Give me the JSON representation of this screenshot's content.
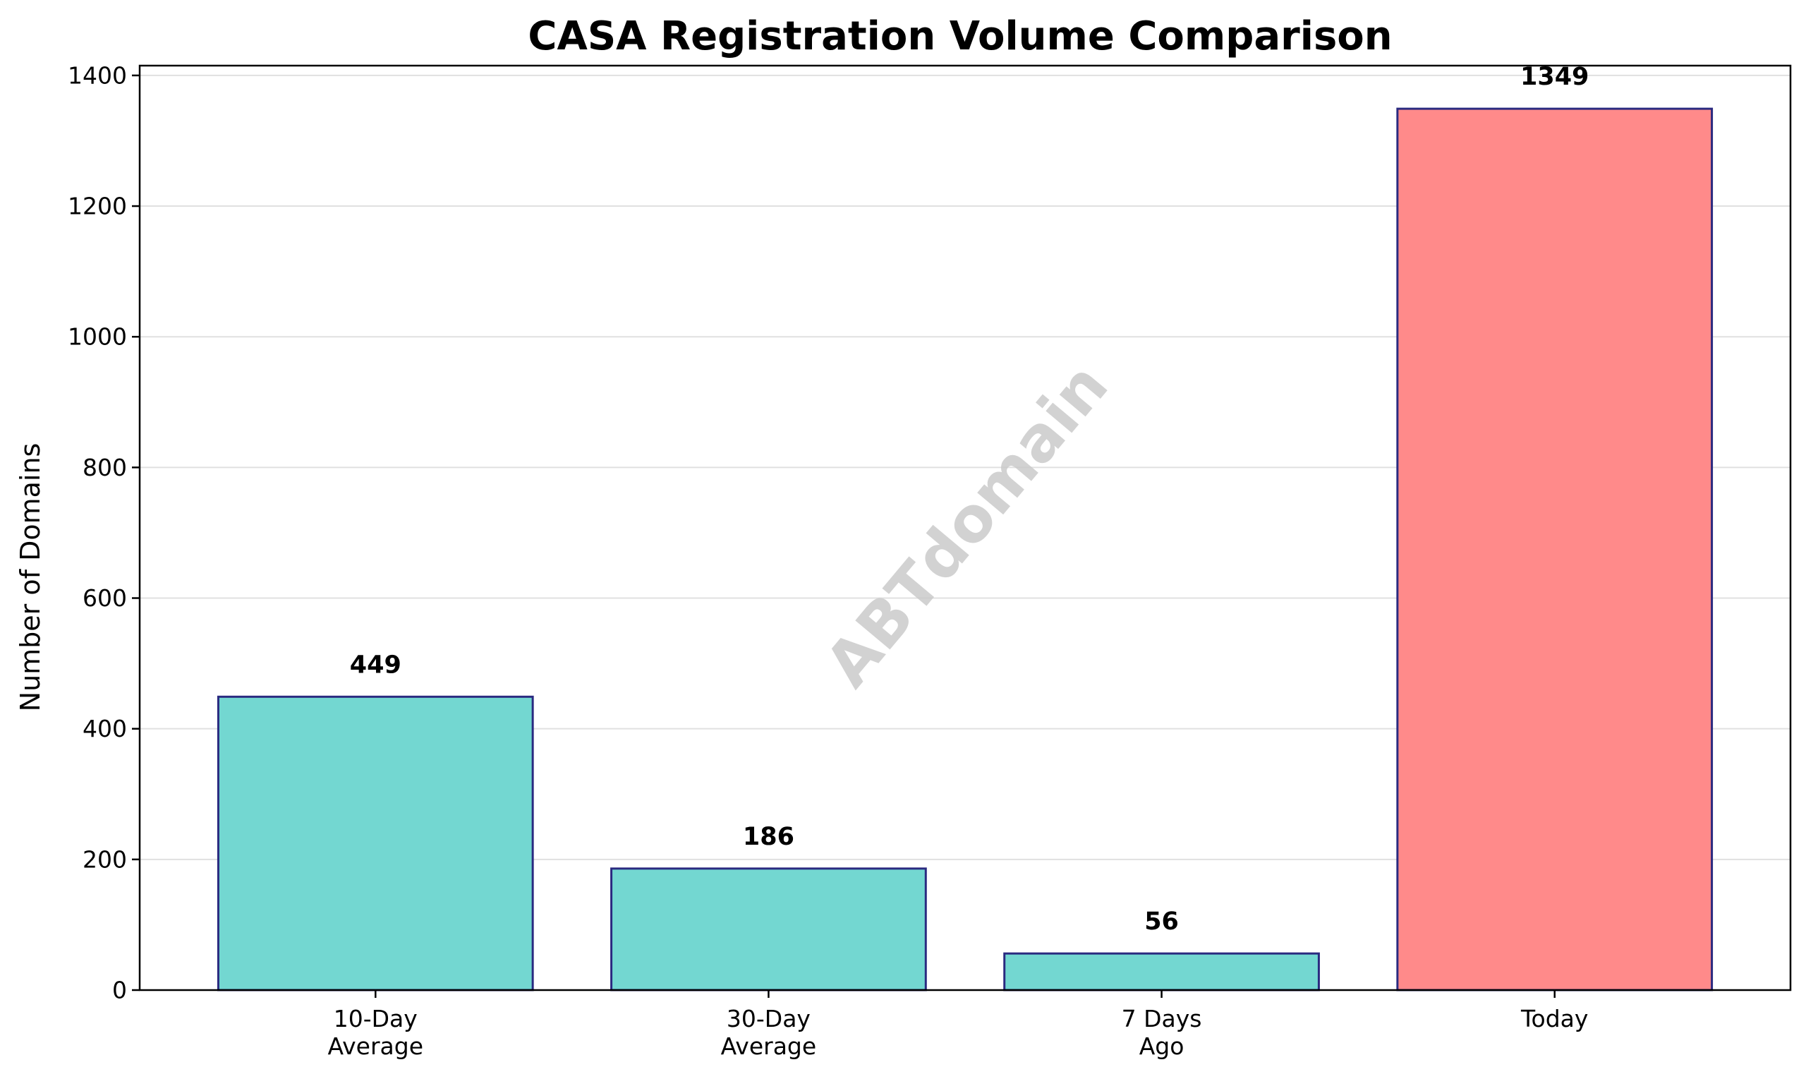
{
  "chart_data": {
    "type": "bar",
    "title": "CASA Registration Volume Comparison",
    "xlabel": "",
    "ylabel": "Number of Domains",
    "categories": [
      [
        "10-Day",
        "Average"
      ],
      [
        "30-Day",
        "Average"
      ],
      [
        "7 Days",
        "Ago"
      ],
      [
        "Today"
      ]
    ],
    "values": [
      449,
      186,
      56,
      1349
    ],
    "data_labels": [
      "449",
      "186",
      "56",
      "1349"
    ],
    "bar_colors": [
      "#73d7d1",
      "#73d7d1",
      "#73d7d1",
      "#ff8a8a"
    ],
    "bar_edge_color": "#2a2a80",
    "ylim": [
      0,
      1415
    ],
    "yticks": [
      0,
      200,
      400,
      600,
      800,
      1000,
      1200,
      1400
    ],
    "grid": "horizontal",
    "watermark": "ABTdomain"
  }
}
